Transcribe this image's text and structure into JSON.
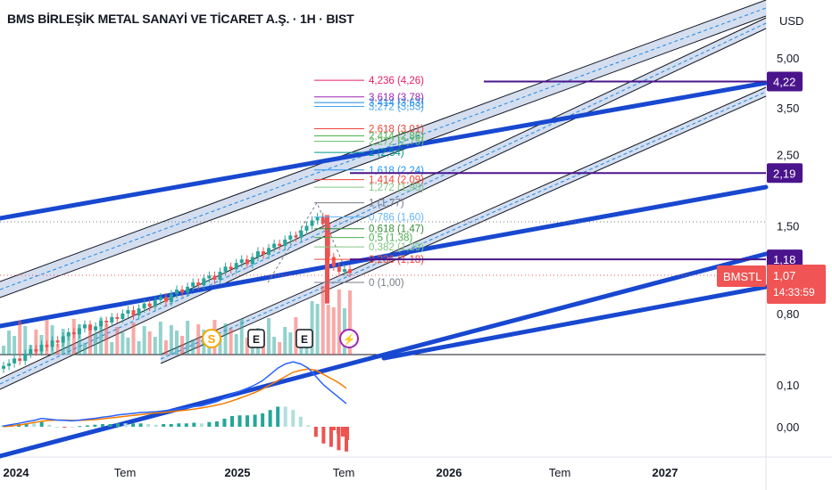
{
  "header": {
    "title": "BMS BİRLEŞİK METAL SANAYİ VE TİCARET A.Ş. · 1H · BIST",
    "currency": "USD"
  },
  "colors": {
    "blue_line": "#1848d0",
    "channel_fill": "#c5d3ea",
    "purple": "#4a148c",
    "up": "#26a69a",
    "down": "#ef5350",
    "price_label": "#f05454",
    "macd_line": "#2962ff",
    "signal_line": "#f57c00"
  },
  "chart_data": [
    {
      "type": "line",
      "panel": "price",
      "y_scale": "log",
      "y_ticks": [
        "5,00",
        "3,50",
        "2,50",
        "1,50",
        "0,80"
      ],
      "x_ticks": [
        "2024",
        "Tem",
        "2025",
        "Tem",
        "2026",
        "Tem",
        "2027"
      ],
      "fibonacci": [
        {
          "ratio": "4,236",
          "price": "4,26",
          "label": "4,236 (4,26)",
          "color": "#e91e63"
        },
        {
          "ratio": "3,618",
          "price": "3,78",
          "label": "3,618 (3,78)",
          "color": "#9c27b0"
        },
        {
          "ratio": "3,414",
          "price": "3,63",
          "label": "3,414 (3,63)",
          "color": "#1e88e5"
        },
        {
          "ratio": "3,272",
          "price": "3,53",
          "label": "3,272 (3,53)",
          "color": "#42a5f5"
        },
        {
          "ratio": "2,618",
          "price": "3,01",
          "label": "2,618 (3,01)",
          "color": "#f44336"
        },
        {
          "ratio": "2,414",
          "price": "2,86",
          "label": "2,414 (2,86)",
          "color": "#4caf50"
        },
        {
          "ratio": "2,272",
          "price": "2,75",
          "label": "2,272 (2,75)",
          "color": "#66bb6a"
        },
        {
          "ratio": "2",
          "price": "2,54",
          "label": "2 (2,54)",
          "color": "#009688"
        },
        {
          "ratio": "1,618",
          "price": "2,24",
          "label": "1,618 (2,24)",
          "color": "#2196f3"
        },
        {
          "ratio": "1,414",
          "price": "2,09",
          "label": "1,414 (2,09)",
          "color": "#f44336"
        },
        {
          "ratio": "1,272",
          "price": "1,98",
          "label": "1,272 (1,98)",
          "color": "#81c784"
        },
        {
          "ratio": "1",
          "price": "1,77",
          "label": "1 (1,77)",
          "color": "#787b86"
        },
        {
          "ratio": "0,786",
          "price": "1,60",
          "label": "0,786 (1,60)",
          "color": "#64b5f6"
        },
        {
          "ratio": "0,618",
          "price": "1,47",
          "label": "0,618 (1,47)",
          "color": "#388e3c"
        },
        {
          "ratio": "0,5",
          "price": "1,38",
          "label": "0,5 (1,38)",
          "color": "#4caf50"
        },
        {
          "ratio": "0,382",
          "price": "1,29",
          "label": "0,382 (1,29)",
          "color": "#81c784"
        },
        {
          "ratio": "0,236",
          "price": "1,18",
          "label": "0,236 (1,18)",
          "color": "#f44336"
        },
        {
          "ratio": "0",
          "price": "1,00",
          "label": "0 (1,00)",
          "color": "#787b86"
        }
      ],
      "horizontal_levels": [
        {
          "price": 4.22,
          "label": "4,22"
        },
        {
          "price": 2.19,
          "label": "2,19"
        },
        {
          "price": 1.18,
          "label": "1,18"
        }
      ],
      "current_price": {
        "symbol": "BMSTL",
        "value": "1,07",
        "countdown": "14:33:59"
      },
      "candles_close": [
        0.55,
        0.56,
        0.58,
        0.57,
        0.6,
        0.62,
        0.61,
        0.64,
        0.63,
        0.66,
        0.65,
        0.68,
        0.7,
        0.69,
        0.72,
        0.74,
        0.71,
        0.73,
        0.76,
        0.75,
        0.78,
        0.77,
        0.8,
        0.82,
        0.79,
        0.83,
        0.86,
        0.84,
        0.88,
        0.9,
        0.87,
        0.92,
        0.95,
        0.93,
        0.97,
        1.0,
        0.98,
        1.03,
        1.05,
        1.02,
        1.08,
        1.12,
        1.1,
        1.15,
        1.18,
        1.14,
        1.2,
        1.25,
        1.22,
        1.28,
        1.32,
        1.3,
        1.36,
        1.4,
        1.38,
        1.45,
        1.5,
        1.56,
        1.6,
        1.52,
        1.2,
        1.12,
        1.08,
        1.1,
        1.07
      ],
      "event_markers": [
        "S",
        "E",
        "E",
        "⚡"
      ]
    },
    {
      "type": "line",
      "panel": "macd",
      "y_ticks": [
        "0,10",
        "0,00"
      ],
      "series": [
        {
          "values": [
            0.002,
            0.005,
            0.008,
            0.012,
            0.015,
            0.02,
            0.018,
            0.016,
            0.015,
            0.014,
            0.016,
            0.018,
            0.02,
            0.023,
            0.025,
            0.028,
            0.03,
            0.032,
            0.034,
            0.035,
            0.036,
            0.038,
            0.04,
            0.043,
            0.045,
            0.048,
            0.05,
            0.055,
            0.06,
            0.068,
            0.078,
            0.085,
            0.092,
            0.1,
            0.11,
            0.125,
            0.14,
            0.15,
            0.155,
            0.15,
            0.14,
            0.12,
            0.1,
            0.085,
            0.07,
            0.055
          ]
        },
        {
          "values": [
            0.0,
            0.002,
            0.004,
            0.007,
            0.01,
            0.013,
            0.015,
            0.016,
            0.016,
            0.015,
            0.015,
            0.016,
            0.017,
            0.019,
            0.021,
            0.023,
            0.025,
            0.027,
            0.029,
            0.031,
            0.033,
            0.034,
            0.036,
            0.038,
            0.04,
            0.042,
            0.045,
            0.048,
            0.052,
            0.056,
            0.062,
            0.068,
            0.075,
            0.082,
            0.09,
            0.1,
            0.11,
            0.12,
            0.13,
            0.135,
            0.138,
            0.135,
            0.125,
            0.115,
            0.105,
            0.092
          ]
        }
      ]
    }
  ]
}
